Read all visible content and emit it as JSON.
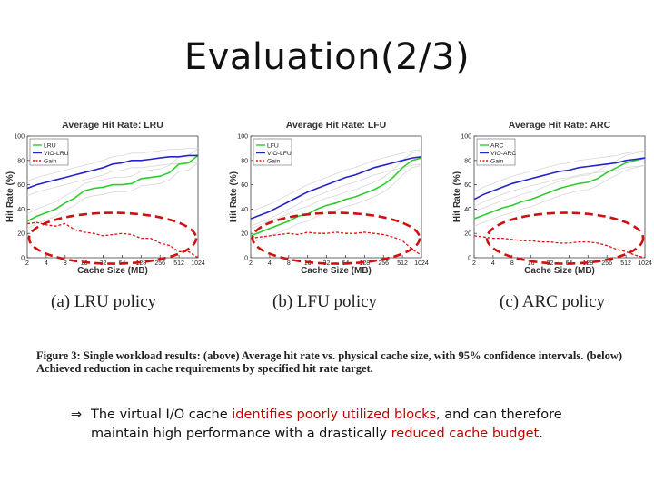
{
  "slide": {
    "title": "Evaluation(2/3)",
    "captions": [
      "(a) LRU policy",
      "(b) LFU policy",
      "(c) ARC policy"
    ],
    "figure_caption": "Figure 3: Single workload results: (above) Average hit rate vs. physical cache size, with 95% confidence intervals. (below) Achieved reduction in cache requirements by specified hit rate target.",
    "bullet": {
      "arrow": "⇒",
      "t1": "The virtual I/O cache ",
      "h1": "identifies poorly utilized blocks",
      "t2": ", and can therefore",
      "t3": "maintain high performance with a drastically ",
      "h2": "reduced cache budget",
      "t4": "."
    }
  },
  "colors": {
    "green": "#2ecc2e",
    "blue": "#2424c8",
    "red": "#dd1111",
    "ellipse": "#cc1111",
    "ci": "#d8d8d8",
    "highlight": "#c00000"
  },
  "chart_data": [
    {
      "type": "line",
      "title": "Average Hit Rate: LRU",
      "xlabel": "Cache Size (MB)",
      "ylabel": "Hit Rate (%)",
      "x_ticks": [
        "2",
        "4",
        "8",
        "16",
        "32",
        "64",
        "128",
        "256",
        "512",
        "1024"
      ],
      "ylim": [
        0,
        100
      ],
      "y_ticks": [
        0,
        20,
        40,
        60,
        80,
        100
      ],
      "legend": "top-left",
      "series": [
        {
          "name": "LRU",
          "color": "green",
          "dash": false,
          "values": [
            [
              0,
              30
            ],
            [
              0.5,
              34
            ],
            [
              1,
              37
            ],
            [
              1.5,
              40
            ],
            [
              2,
              45
            ],
            [
              2.5,
              49
            ],
            [
              3,
              55
            ],
            [
              3.5,
              57
            ],
            [
              4,
              58
            ],
            [
              4.5,
              60
            ],
            [
              5,
              60
            ],
            [
              5.5,
              61
            ],
            [
              6,
              65
            ],
            [
              6.5,
              66
            ],
            [
              7,
              67
            ],
            [
              7.5,
              70
            ],
            [
              8,
              77
            ],
            [
              8.5,
              78
            ],
            [
              9,
              84
            ]
          ]
        },
        {
          "name": "VIO-LRU",
          "color": "blue",
          "dash": false,
          "values": [
            [
              0,
              57
            ],
            [
              0.5,
              60
            ],
            [
              1,
              62
            ],
            [
              1.5,
              64
            ],
            [
              2,
              66
            ],
            [
              2.5,
              68
            ],
            [
              3,
              70
            ],
            [
              3.5,
              72
            ],
            [
              4,
              74
            ],
            [
              4.5,
              77
            ],
            [
              5,
              78
            ],
            [
              5.5,
              80
            ],
            [
              6,
              80
            ],
            [
              6.5,
              81
            ],
            [
              7,
              82
            ],
            [
              7.5,
              83
            ],
            [
              8,
              83
            ],
            [
              8.5,
              84
            ],
            [
              9,
              84
            ]
          ]
        },
        {
          "name": "Gain",
          "color": "red",
          "dash": true,
          "values": [
            [
              0,
              28
            ],
            [
              0.5,
              29
            ],
            [
              1,
              27
            ],
            [
              1.5,
              26
            ],
            [
              2,
              28
            ],
            [
              2.5,
              23
            ],
            [
              3,
              21
            ],
            [
              3.5,
              20
            ],
            [
              4,
              18
            ],
            [
              4.5,
              19
            ],
            [
              5,
              20
            ],
            [
              5.5,
              19
            ],
            [
              6,
              16
            ],
            [
              6.5,
              16
            ],
            [
              7,
              12
            ],
            [
              7.5,
              10
            ],
            [
              8,
              5
            ],
            [
              8.5,
              5
            ],
            [
              9,
              0
            ]
          ]
        }
      ]
    },
    {
      "type": "line",
      "title": "Average Hit Rate: LFU",
      "xlabel": "Cache Size (MB)",
      "ylabel": "Hit Rate (%)",
      "x_ticks": [
        "2",
        "4",
        "8",
        "16",
        "32",
        "64",
        "128",
        "256",
        "512",
        "1024"
      ],
      "ylim": [
        0,
        100
      ],
      "y_ticks": [
        0,
        20,
        40,
        60,
        80,
        100
      ],
      "legend": "top-left",
      "series": [
        {
          "name": "LFU",
          "color": "green",
          "dash": false,
          "values": [
            [
              0,
              18
            ],
            [
              0.5,
              21
            ],
            [
              1,
              24
            ],
            [
              1.5,
              27
            ],
            [
              2,
              30
            ],
            [
              2.5,
              34
            ],
            [
              3,
              36
            ],
            [
              3.5,
              40
            ],
            [
              4,
              43
            ],
            [
              4.5,
              45
            ],
            [
              5,
              48
            ],
            [
              5.5,
              50
            ],
            [
              6,
              53
            ],
            [
              6.5,
              56
            ],
            [
              7,
              60
            ],
            [
              7.5,
              66
            ],
            [
              8,
              74
            ],
            [
              8.5,
              80
            ],
            [
              9,
              82
            ]
          ]
        },
        {
          "name": "VIO-LFU",
          "color": "blue",
          "dash": false,
          "values": [
            [
              0,
              32
            ],
            [
              0.5,
              35
            ],
            [
              1,
              38
            ],
            [
              1.5,
              42
            ],
            [
              2,
              46
            ],
            [
              2.5,
              50
            ],
            [
              3,
              54
            ],
            [
              3.5,
              57
            ],
            [
              4,
              60
            ],
            [
              4.5,
              63
            ],
            [
              5,
              66
            ],
            [
              5.5,
              68
            ],
            [
              6,
              71
            ],
            [
              6.5,
              74
            ],
            [
              7,
              76
            ],
            [
              7.5,
              78
            ],
            [
              8,
              80
            ],
            [
              8.5,
              82
            ],
            [
              9,
              83
            ]
          ]
        },
        {
          "name": "Gain",
          "color": "red",
          "dash": true,
          "values": [
            [
              0,
              16
            ],
            [
              0.5,
              17
            ],
            [
              1,
              18
            ],
            [
              1.5,
              19
            ],
            [
              2,
              20
            ],
            [
              2.5,
              19
            ],
            [
              3,
              21
            ],
            [
              3.5,
              20
            ],
            [
              4,
              20
            ],
            [
              4.5,
              21
            ],
            [
              5,
              20
            ],
            [
              5.5,
              20
            ],
            [
              6,
              21
            ],
            [
              6.5,
              20
            ],
            [
              7,
              19
            ],
            [
              7.5,
              17
            ],
            [
              8,
              14
            ],
            [
              8.5,
              7
            ],
            [
              9,
              2
            ]
          ]
        }
      ]
    },
    {
      "type": "line",
      "title": "Average Hit Rate: ARC",
      "xlabel": "Cache Size (MB)",
      "ylabel": "Hit Rate (%)",
      "x_ticks": [
        "2",
        "4",
        "8",
        "16",
        "32",
        "64",
        "128",
        "256",
        "512",
        "1024"
      ],
      "ylim": [
        0,
        100
      ],
      "y_ticks": [
        0,
        20,
        40,
        60,
        80,
        100
      ],
      "legend": "top-left",
      "series": [
        {
          "name": "ARC",
          "color": "green",
          "dash": false,
          "values": [
            [
              0,
              32
            ],
            [
              0.5,
              35
            ],
            [
              1,
              38
            ],
            [
              1.5,
              41
            ],
            [
              2,
              43
            ],
            [
              2.5,
              46
            ],
            [
              3,
              48
            ],
            [
              3.5,
              51
            ],
            [
              4,
              54
            ],
            [
              4.5,
              57
            ],
            [
              5,
              59
            ],
            [
              5.5,
              61
            ],
            [
              6,
              62
            ],
            [
              6.5,
              65
            ],
            [
              7,
              70
            ],
            [
              7.5,
              74
            ],
            [
              8,
              78
            ],
            [
              8.5,
              80
            ],
            [
              9,
              82
            ]
          ]
        },
        {
          "name": "VIO-ARC",
          "color": "blue",
          "dash": false,
          "values": [
            [
              0,
              48
            ],
            [
              0.5,
              52
            ],
            [
              1,
              55
            ],
            [
              1.5,
              58
            ],
            [
              2,
              61
            ],
            [
              2.5,
              63
            ],
            [
              3,
              65
            ],
            [
              3.5,
              67
            ],
            [
              4,
              69
            ],
            [
              4.5,
              71
            ],
            [
              5,
              72
            ],
            [
              5.5,
              74
            ],
            [
              6,
              75
            ],
            [
              6.5,
              76
            ],
            [
              7,
              77
            ],
            [
              7.5,
              78
            ],
            [
              8,
              80
            ],
            [
              8.5,
              81
            ],
            [
              9,
              82
            ]
          ]
        },
        {
          "name": "Gain",
          "color": "red",
          "dash": true,
          "values": [
            [
              0,
              18
            ],
            [
              0.5,
              17
            ],
            [
              1,
              16
            ],
            [
              1.5,
              16
            ],
            [
              2,
              15
            ],
            [
              2.5,
              14
            ],
            [
              3,
              14
            ],
            [
              3.5,
              13
            ],
            [
              4,
              13
            ],
            [
              4.5,
              12
            ],
            [
              5,
              12
            ],
            [
              5.5,
              13
            ],
            [
              6,
              13
            ],
            [
              6.5,
              12
            ],
            [
              7,
              10
            ],
            [
              7.5,
              7
            ],
            [
              8,
              5
            ],
            [
              8.5,
              2
            ],
            [
              9,
              0
            ]
          ]
        }
      ]
    }
  ]
}
